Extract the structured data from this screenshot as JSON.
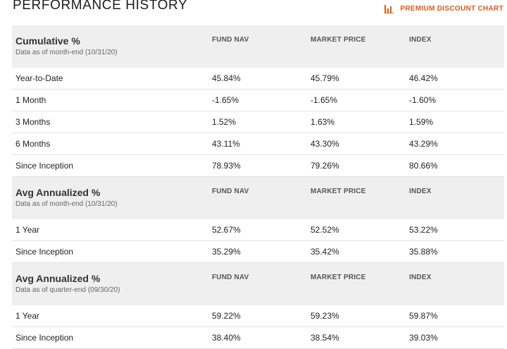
{
  "header": {
    "title": "PERFORMANCE HISTORY",
    "premium_link": "PREMIUM DISCOUNT CHART",
    "premium_icon": "bar-chart-icon",
    "accent_color": "#e1581b"
  },
  "sections": [
    {
      "title": "Cumulative %",
      "subtitle": "Data as of month-end (10/31/20)",
      "columns": [
        "FUND NAV",
        "MARKET PRICE",
        "INDEX"
      ],
      "rows": [
        {
          "label": "Year-to-Date",
          "nav": "45.84%",
          "market": "45.79%",
          "index": "46.42%"
        },
        {
          "label": "1 Month",
          "nav": "-1.65%",
          "market": "-1.65%",
          "index": "-1.60%"
        },
        {
          "label": "3 Months",
          "nav": "1.52%",
          "market": "1.63%",
          "index": "1.59%"
        },
        {
          "label": "6 Months",
          "nav": "43.11%",
          "market": "43.30%",
          "index": "43.29%"
        },
        {
          "label": "Since Inception",
          "nav": "78.93%",
          "market": "79.26%",
          "index": "80.66%"
        }
      ]
    },
    {
      "title": "Avg Annualized %",
      "subtitle": "Data as of month-end (10/31/20)",
      "columns": [
        "FUND NAV",
        "MARKET PRICE",
        "INDEX"
      ],
      "rows": [
        {
          "label": "1 Year",
          "nav": "52.67%",
          "market": "52.52%",
          "index": "53.22%"
        },
        {
          "label": "Since Inception",
          "nav": "35.29%",
          "market": "35.42%",
          "index": "35.88%"
        }
      ]
    },
    {
      "title": "Avg Annualized %",
      "subtitle": "Data as of quarter-end (09/30/20)",
      "columns": [
        "FUND NAV",
        "MARKET PRICE",
        "INDEX"
      ],
      "rows": [
        {
          "label": "1 Year",
          "nav": "59.22%",
          "market": "59.23%",
          "index": "59.87%"
        },
        {
          "label": "Since Inception",
          "nav": "38.40%",
          "market": "38.54%",
          "index": "39.03%"
        }
      ]
    }
  ]
}
